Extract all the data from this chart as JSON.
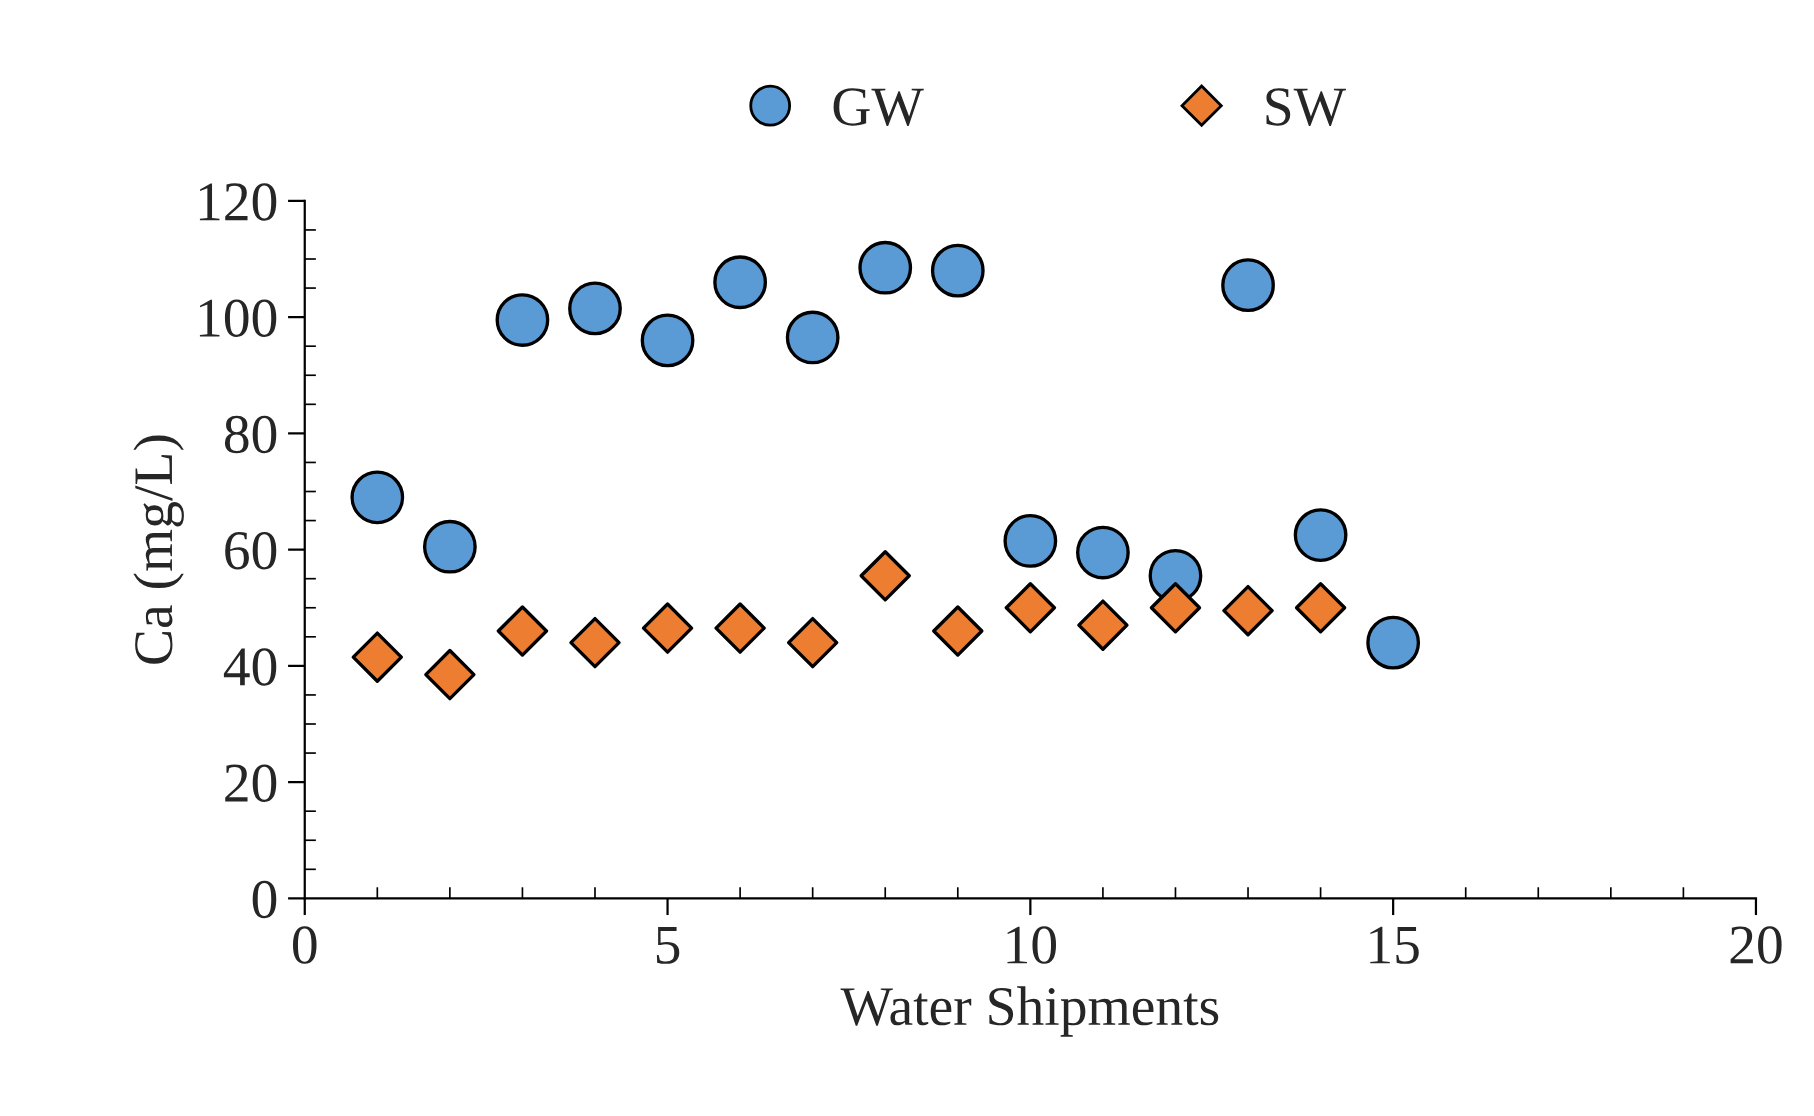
{
  "chart_data": {
    "type": "scatter",
    "xlabel": "Water Shipments",
    "ylabel": "Ca (mg/L)",
    "xlim": [
      0,
      20
    ],
    "xticks": [
      0,
      5,
      10,
      15,
      20
    ],
    "ylim": [
      0,
      120
    ],
    "yticks": [
      0,
      20,
      40,
      60,
      80,
      100,
      120
    ],
    "grid": false,
    "legend": "top",
    "series": [
      {
        "name": "GW",
        "color": "#5b9bd5",
        "marker": "circle",
        "x": [
          1,
          2,
          3,
          4,
          5,
          6,
          7,
          8,
          9,
          10,
          11,
          12,
          13,
          14,
          15
        ],
        "values": [
          69,
          60.5,
          99.5,
          101.5,
          96,
          106,
          96.5,
          108.5,
          108,
          61.5,
          59.5,
          55.5,
          105.5,
          62.5,
          44
        ]
      },
      {
        "name": "SW",
        "color": "#ed7d31",
        "marker": "diamond",
        "x": [
          1,
          2,
          3,
          4,
          5,
          6,
          7,
          8,
          9,
          10,
          11,
          12,
          13,
          14
        ],
        "values": [
          41.5,
          38.5,
          46,
          44,
          46.5,
          46.5,
          44,
          55.5,
          46,
          50,
          47,
          50,
          49.5,
          50
        ]
      }
    ]
  }
}
